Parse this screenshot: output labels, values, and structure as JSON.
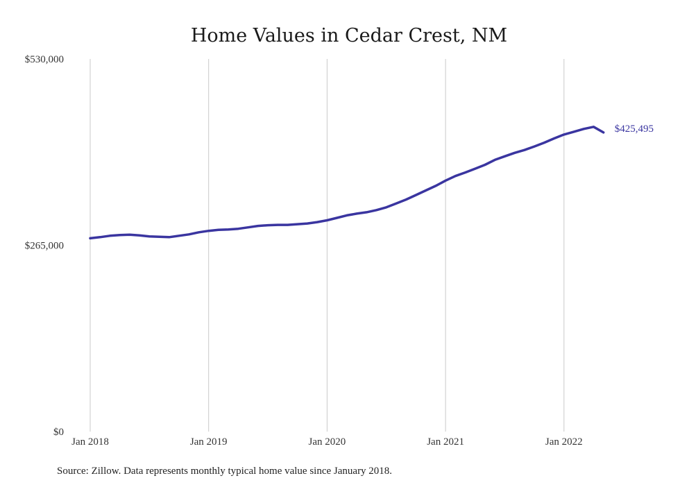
{
  "chart_data": {
    "type": "line",
    "title": "Home Values in Cedar Crest, NM",
    "xlabel": "",
    "ylabel": "",
    "ylim": [
      0,
      530000
    ],
    "y_ticks": [
      {
        "value": 0,
        "label": "$0"
      },
      {
        "value": 265000,
        "label": "$265,000"
      },
      {
        "value": 530000,
        "label": "$530,000"
      }
    ],
    "x_ticks": [
      {
        "value": "2018-01",
        "label": "Jan 2018"
      },
      {
        "value": "2019-01",
        "label": "Jan 2019"
      },
      {
        "value": "2020-01",
        "label": "Jan 2020"
      },
      {
        "value": "2021-01",
        "label": "Jan 2021"
      },
      {
        "value": "2022-01",
        "label": "Jan 2022"
      }
    ],
    "x_range": [
      "2018-01",
      "2022-05"
    ],
    "grid": {
      "vertical": true,
      "horizontal": false
    },
    "legend": "none",
    "colors": {
      "line": "#3a35a0",
      "end_label": "#3a35a0",
      "grid": "#c9c9c9"
    },
    "series": [
      {
        "color": "#3a35a0",
        "x": [
          "2018-01",
          "2018-02",
          "2018-03",
          "2018-04",
          "2018-05",
          "2018-06",
          "2018-07",
          "2018-08",
          "2018-09",
          "2018-10",
          "2018-11",
          "2018-12",
          "2019-01",
          "2019-02",
          "2019-03",
          "2019-04",
          "2019-05",
          "2019-06",
          "2019-07",
          "2019-08",
          "2019-09",
          "2019-10",
          "2019-11",
          "2019-12",
          "2020-01",
          "2020-02",
          "2020-03",
          "2020-04",
          "2020-05",
          "2020-06",
          "2020-07",
          "2020-08",
          "2020-09",
          "2020-10",
          "2020-11",
          "2020-12",
          "2021-01",
          "2021-02",
          "2021-03",
          "2021-04",
          "2021-05",
          "2021-06",
          "2021-07",
          "2021-08",
          "2021-09",
          "2021-10",
          "2021-11",
          "2021-12",
          "2022-01",
          "2022-02",
          "2022-03",
          "2022-04",
          "2022-05"
        ],
        "values": [
          275000,
          276500,
          278500,
          279500,
          280000,
          279000,
          277500,
          277000,
          276500,
          278500,
          280500,
          283500,
          285500,
          287000,
          287500,
          288500,
          290500,
          292500,
          293500,
          294000,
          294000,
          295000,
          296000,
          298000,
          300500,
          304000,
          307500,
          310000,
          312000,
          315000,
          319000,
          324500,
          330000,
          336500,
          343000,
          349500,
          357000,
          363500,
          368500,
          374000,
          379500,
          386500,
          391500,
          396500,
          400500,
          405500,
          411000,
          417000,
          422500,
          426500,
          430500,
          433500,
          425495
        ]
      }
    ],
    "end_label": "$425,495",
    "source_note": "Source: Zillow. Data represents monthly typical home value since January 2018."
  }
}
